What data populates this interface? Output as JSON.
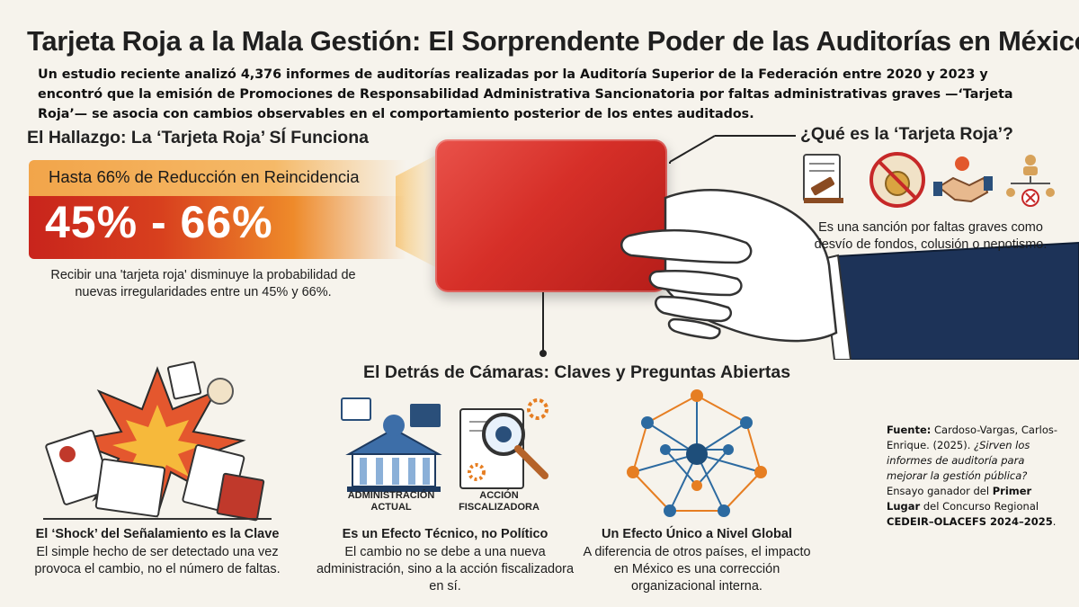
{
  "title": "Tarjeta Roja a la Mala Gestión: El Sorprendente Poder de las Auditorías en México",
  "intro": "Un estudio reciente analizó 4,376 informes de auditorías realizadas por la Auditoría Superior de la Federación entre 2020 y 2023 y encontró que la emisión de Promociones de Responsabilidad Administrativa Sancionatoria por faltas administrativas graves —‘Tarjeta Roja’— se asocia con cambios observables en el comportamiento posterior de los entes auditados.",
  "hallazgo": {
    "title": "El Hallazgo: La ‘Tarjeta Roja’ SÍ Funciona",
    "banner_label": "Hasta 66% de Reducción en Reincidencia",
    "banner_value": "45% - 66%",
    "description": "Recibir una 'tarjeta roja' disminuye la probabilidad de nuevas irregularidades entre un 45% y 66%."
  },
  "que_es": {
    "title": "¿Qué es la ‘Tarjeta Roja’?",
    "icons": [
      "gavel-document-icon",
      "no-money-icon",
      "handshake-icon",
      "nepotism-org-icon"
    ],
    "description": "Es una sanción por faltas graves como desvío de fondos, colusión o nepotismo."
  },
  "detras": {
    "title": "El Detrás de Cámaras: Claves y Preguntas Abiertas",
    "shock": {
      "title": "El ‘Shock’ del Señalamiento es la Clave",
      "description": "El simple hecho de ser detectado una vez provoca el cambio, no el número de faltas."
    },
    "tecnico": {
      "label_admin": "ADMINISTRACIÓN ACTUAL",
      "label_accion": "ACCIÓN FISCALIZADORA",
      "title": "Es un Efecto Técnico, no Político",
      "description": "El cambio no se debe a una nueva administración, sino a la acción fiscalizadora en sí."
    },
    "global": {
      "title": "Un Efecto Único a Nivel Global",
      "description": "A diferencia de otros países, el impacto en México es una corrección organizacional interna."
    }
  },
  "fuente": {
    "label": "Fuente:",
    "authors": " Cardoso-Vargas, Carlos-Enrique. (2025). ",
    "work": "¿Sirven los informes de auditoría para mejorar la gestión pública?",
    "prize_pre": " Ensayo ganador del ",
    "prize": "Primer Lugar",
    "contest_pre": " del Concurso Regional ",
    "contest": "CEDEIR–OLACEFS 2024–2025",
    "end": "."
  },
  "colors": {
    "background": "#f6f3ec",
    "card_red": "#d62f28",
    "banner_orange": "#f2a54a",
    "sleeve_navy": "#1d3358"
  }
}
